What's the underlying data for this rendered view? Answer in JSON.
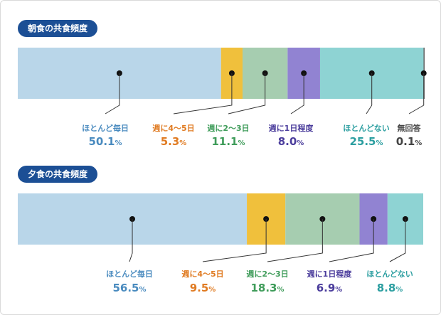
{
  "chart_data": [
    {
      "type": "bar",
      "orientation": "horizontal-stacked",
      "title": "朝食の共食頻度",
      "unit": "%",
      "segments": [
        {
          "label": "ほとんど毎日",
          "value": 50.1,
          "color": "#b9d6e9",
          "label_color": "#4a8bbf"
        },
        {
          "label": "週に4〜5日",
          "value": 5.3,
          "color": "#f0c03c",
          "label_color": "#e07b22"
        },
        {
          "label": "週に2〜3日",
          "value": 11.1,
          "color": "#a6cdb0",
          "label_color": "#3f9c5a"
        },
        {
          "label": "週に1日程度",
          "value": 8.0,
          "color": "#9183d2",
          "label_color": "#4b3d9c"
        },
        {
          "label": "ほとんどない",
          "value": 25.5,
          "color": "#8ed3d3",
          "label_color": "#2b9ea0"
        },
        {
          "label": "無回答",
          "value": 0.1,
          "color": "#5c5c5c",
          "label_color": "#444444"
        }
      ]
    },
    {
      "type": "bar",
      "orientation": "horizontal-stacked",
      "title": "夕食の共食頻度",
      "unit": "%",
      "segments": [
        {
          "label": "ほとんど毎日",
          "value": 56.5,
          "color": "#b9d6e9",
          "label_color": "#4a8bbf"
        },
        {
          "label": "週に4〜5日",
          "value": 9.5,
          "color": "#f0c03c",
          "label_color": "#e07b22"
        },
        {
          "label": "週に2〜3日",
          "value": 18.3,
          "color": "#a6cdb0",
          "label_color": "#3f9c5a"
        },
        {
          "label": "週に1日程度",
          "value": 6.9,
          "color": "#9183d2",
          "label_color": "#4b3d9c"
        },
        {
          "label": "ほとんどない",
          "value": 8.8,
          "color": "#8ed3d3",
          "label_color": "#2b9ea0"
        }
      ]
    }
  ]
}
